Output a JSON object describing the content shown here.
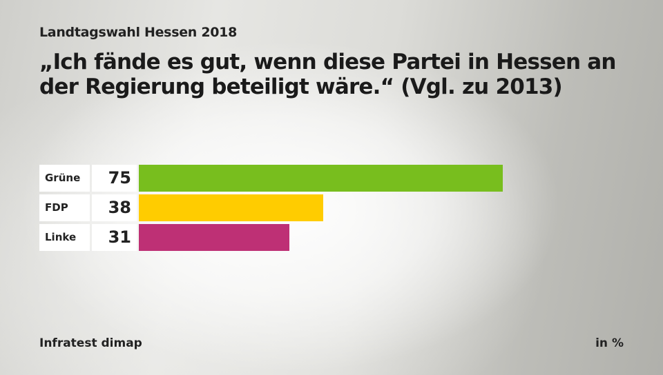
{
  "header": {
    "subtitle": "Landtagswahl Hessen 2018",
    "title": "„Ich fände es gut, wenn diese Partei in Hessen an der Regierung beteiligt wäre.“ (Vgl. zu 2013)"
  },
  "footer": {
    "source": "Infratest dimap",
    "unit": "in %"
  },
  "chart_data": {
    "type": "bar",
    "orientation": "horizontal",
    "title": "„Ich fände es gut, wenn diese Partei in Hessen an der Regierung beteiligt wäre.“ (Vgl. zu 2013)",
    "subtitle": "Landtagswahl Hessen 2018",
    "categories": [
      "Grüne",
      "FDP",
      "Linke"
    ],
    "values": [
      75,
      38,
      31
    ],
    "value_labels": [
      "75",
      "38",
      "31"
    ],
    "colors": [
      "#78be1e",
      "#ffcc00",
      "#be3075"
    ],
    "xlim": [
      0,
      100
    ],
    "unit": "in %",
    "grid": false,
    "legend": "none"
  }
}
